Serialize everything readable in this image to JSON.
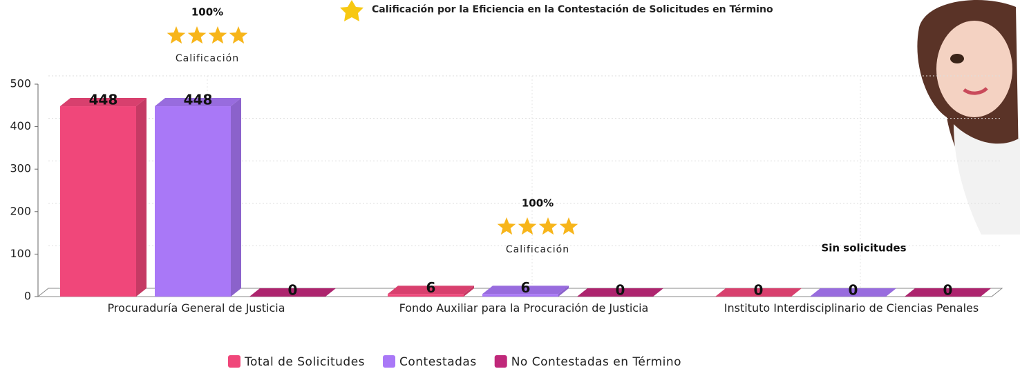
{
  "chart_data": {
    "type": "bar3d",
    "title": "Calificación por la Eficiencia en la Contestación de Solicitudes en Término",
    "categories": [
      "Procuraduría General de Justicia",
      "Fondo Auxiliar para la Procuración de Justicia",
      "Instituto Interdisciplinario de Ciencias Penales"
    ],
    "series": [
      {
        "name": "Total de Solicitudes",
        "color": "#f0477a",
        "values": [
          448,
          6,
          0
        ]
      },
      {
        "name": "Contestadas",
        "color": "#a978f7",
        "values": [
          448,
          6,
          0
        ]
      },
      {
        "name": "No Contestadas en Término",
        "color": "#c0287a",
        "values": [
          0,
          0,
          0
        ]
      }
    ],
    "ylim": [
      0,
      500
    ],
    "yticks": [
      0,
      100,
      200,
      300,
      400,
      500
    ],
    "grid": true,
    "ratings": [
      {
        "percent": "100%",
        "label": "Calificación"
      },
      {
        "percent": "100%",
        "label": "Calificación"
      },
      {
        "text": "Sin solicitudes"
      }
    ]
  }
}
